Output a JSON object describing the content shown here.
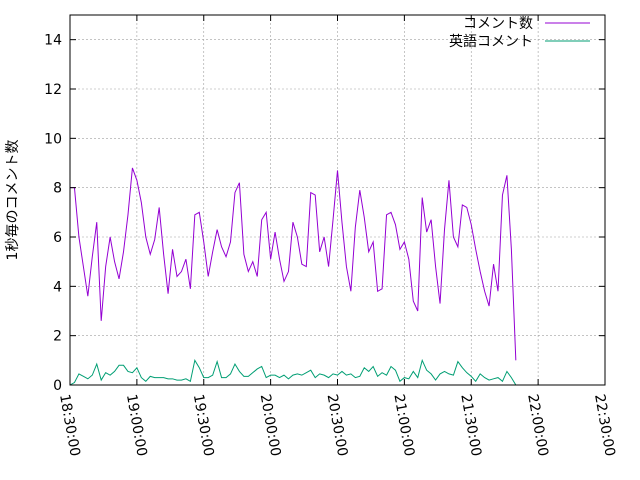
{
  "chart_data": {
    "type": "line",
    "ylabel": "1秒毎のコメント数",
    "xlabel": "",
    "ylim": [
      0,
      15
    ],
    "xlim": [
      "18:30:00",
      "22:30:00"
    ],
    "grid": true,
    "legend_position": "top-right",
    "yticks": [
      0,
      2,
      4,
      6,
      8,
      10,
      12,
      14
    ],
    "xticks": [
      "18:30:00",
      "19:00:00",
      "19:30:00",
      "20:00:00",
      "20:30:00",
      "21:00:00",
      "21:30:00",
      "22:00:00",
      "22:30:00"
    ],
    "x_start": "18:30:00",
    "x_step_seconds": 120,
    "series": [
      {
        "name": "コメント数",
        "color": "#9400d3",
        "values": [
          8.0,
          8.0,
          6.0,
          4.8,
          3.6,
          5.2,
          6.6,
          2.6,
          4.8,
          6.0,
          5.0,
          4.3,
          5.4,
          6.9,
          8.8,
          8.3,
          7.4,
          6.0,
          5.3,
          5.9,
          7.2,
          5.3,
          3.7,
          5.5,
          4.4,
          4.6,
          5.1,
          3.9,
          6.9,
          7.0,
          5.8,
          4.4,
          5.4,
          6.3,
          5.6,
          5.2,
          5.8,
          7.8,
          8.2,
          5.3,
          4.6,
          5.0,
          4.4,
          6.7,
          7.0,
          5.1,
          6.2,
          5.1,
          4.2,
          4.6,
          6.6,
          6.0,
          4.9,
          4.8,
          7.8,
          7.7,
          5.4,
          6.0,
          4.8,
          6.7,
          8.7,
          6.6,
          4.8,
          3.8,
          6.4,
          7.9,
          6.8,
          5.4,
          5.8,
          3.8,
          3.9,
          6.9,
          7.0,
          6.5,
          5.5,
          5.8,
          5.1,
          3.4,
          3.0,
          7.6,
          6.2,
          6.7,
          4.8,
          3.3,
          6.3,
          8.3,
          6.0,
          5.6,
          7.3,
          7.2,
          6.5,
          5.5,
          4.6,
          3.8,
          3.2,
          4.9,
          3.8,
          7.7,
          8.5,
          5.5,
          1.0
        ]
      },
      {
        "name": "英語コメント",
        "color": "#009e73",
        "values": [
          0.0,
          0.1,
          0.45,
          0.35,
          0.25,
          0.4,
          0.85,
          0.2,
          0.5,
          0.4,
          0.55,
          0.8,
          0.8,
          0.55,
          0.5,
          0.7,
          0.3,
          0.15,
          0.35,
          0.3,
          0.3,
          0.3,
          0.25,
          0.25,
          0.2,
          0.2,
          0.25,
          0.15,
          1.0,
          0.7,
          0.3,
          0.3,
          0.4,
          0.95,
          0.3,
          0.3,
          0.45,
          0.85,
          0.55,
          0.35,
          0.35,
          0.5,
          0.65,
          0.75,
          0.3,
          0.4,
          0.4,
          0.3,
          0.4,
          0.25,
          0.4,
          0.45,
          0.4,
          0.5,
          0.6,
          0.3,
          0.45,
          0.4,
          0.3,
          0.45,
          0.4,
          0.55,
          0.4,
          0.45,
          0.3,
          0.35,
          0.7,
          0.55,
          0.75,
          0.35,
          0.5,
          0.4,
          0.75,
          0.6,
          0.15,
          0.3,
          0.25,
          0.55,
          0.3,
          1.0,
          0.6,
          0.45,
          0.2,
          0.45,
          0.55,
          0.45,
          0.4,
          0.95,
          0.7,
          0.5,
          0.35,
          0.15,
          0.45,
          0.3,
          0.2,
          0.25,
          0.3,
          0.15,
          0.55,
          0.3,
          0.0
        ]
      }
    ]
  }
}
